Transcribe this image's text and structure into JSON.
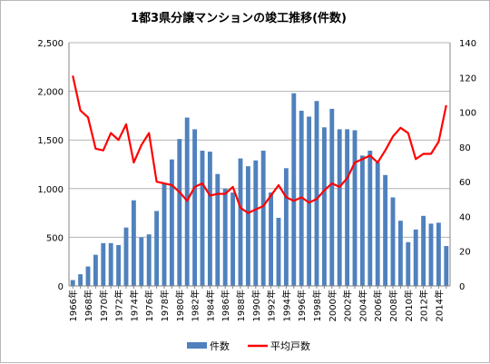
{
  "chart_data": {
    "type": "bar",
    "title": "1都3県分譲マンションの竣工推移(件数)",
    "xlabel": "",
    "ylabel": "",
    "categories": [
      "1966年",
      "1967年",
      "1968年",
      "1969年",
      "1970年",
      "1971年",
      "1972年",
      "1973年",
      "1974年",
      "1975年",
      "1976年",
      "1977年",
      "1978年",
      "1979年",
      "1980年",
      "1981年",
      "1982年",
      "1983年",
      "1984年",
      "1985年",
      "1986年",
      "1987年",
      "1988年",
      "1989年",
      "1990年",
      "1991年",
      "1992年",
      "1993年",
      "1994年",
      "1995年",
      "1996年",
      "1997年",
      "1998年",
      "1999年",
      "2000年",
      "2001年",
      "2002年",
      "2003年",
      "2004年",
      "2005年",
      "2006年",
      "2007年",
      "2008年",
      "2009年",
      "2010年",
      "2011年",
      "2012年",
      "2013年",
      "2014年",
      "2015年"
    ],
    "x_tick_labels": [
      "1966年",
      "1968年",
      "1970年",
      "1972年",
      "1974年",
      "1976年",
      "1978年",
      "1980年",
      "1982年",
      "1984年",
      "1986年",
      "1988年",
      "1990年",
      "1992年",
      "1994年",
      "1996年",
      "1998年",
      "2000年",
      "2002年",
      "2004年",
      "2006年",
      "2008年",
      "2010年",
      "2012年",
      "2014年"
    ],
    "series": [
      {
        "name": "件数",
        "type": "bar",
        "axis": "left",
        "color": "#4f81bd",
        "values": [
          60,
          120,
          200,
          320,
          440,
          440,
          420,
          600,
          880,
          500,
          530,
          770,
          1050,
          1300,
          1510,
          1730,
          1610,
          1390,
          1380,
          1150,
          1000,
          960,
          1310,
          1230,
          1290,
          1390,
          960,
          700,
          1210,
          1980,
          1800,
          1740,
          1900,
          1630,
          1820,
          1610,
          1610,
          1600,
          1340,
          1390,
          1270,
          1140,
          910,
          670,
          450,
          580,
          720,
          640,
          650,
          410
        ]
      },
      {
        "name": "平均戸数",
        "type": "line",
        "axis": "right",
        "color": "#ff0000",
        "values": [
          121,
          101,
          97,
          79,
          78,
          88,
          84,
          93,
          71,
          81,
          88,
          60,
          59,
          58,
          54,
          49,
          57,
          59,
          52,
          53,
          53,
          57,
          45,
          42,
          44,
          46,
          52,
          58,
          51,
          49,
          51,
          48,
          50,
          55,
          59,
          57,
          62,
          71,
          73,
          75,
          71,
          78,
          86,
          91,
          88,
          73,
          76,
          76,
          83,
          104
        ]
      }
    ],
    "ylim": [
      0,
      2500
    ],
    "y_ticks": [
      "0",
      "500",
      "1,000",
      "1,500",
      "2,000",
      "2,500"
    ],
    "y2lim": [
      0,
      140
    ],
    "y2_ticks": [
      "0",
      "20",
      "40",
      "60",
      "80",
      "100",
      "120",
      "140"
    ],
    "grid": true,
    "legend": {
      "position": "bottom",
      "items": [
        "件数",
        "平均戸数"
      ]
    }
  }
}
